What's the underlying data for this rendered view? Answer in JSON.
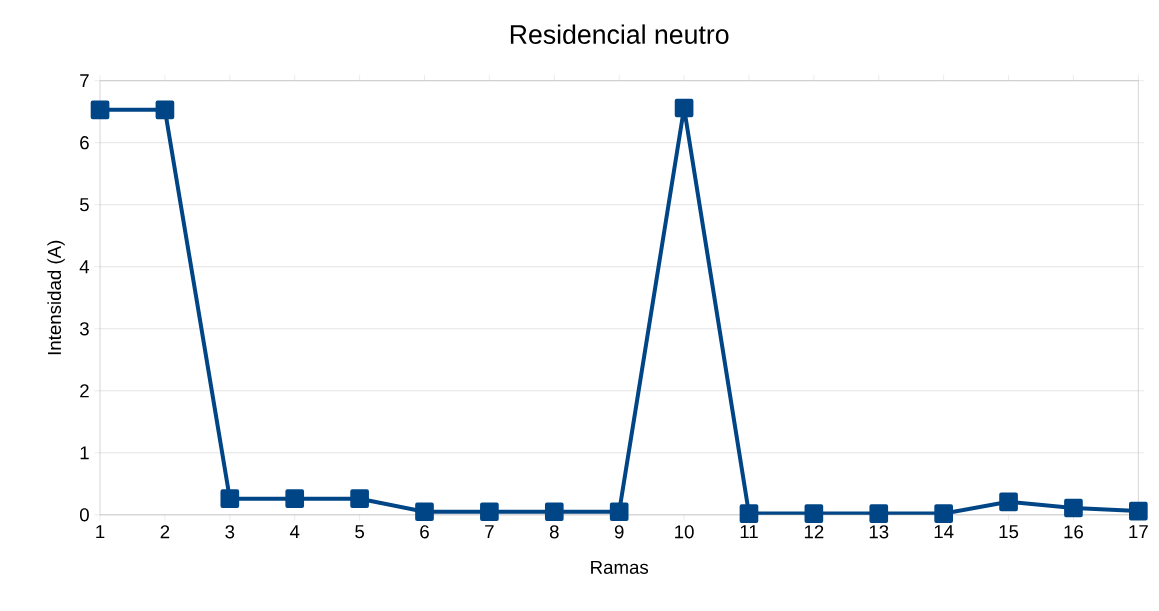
{
  "chart_data": {
    "type": "line",
    "title": "Residencial neutro",
    "xlabel": "Ramas",
    "ylabel": "Intensidad (A)",
    "x": [
      1,
      2,
      3,
      4,
      5,
      6,
      7,
      8,
      9,
      10,
      11,
      12,
      13,
      14,
      15,
      16,
      17
    ],
    "series": [
      {
        "color": "#004586",
        "values": [
          6.53,
          6.53,
          0.26,
          0.26,
          0.26,
          0.05,
          0.05,
          0.05,
          0.05,
          6.56,
          0.02,
          0.02,
          0.02,
          0.02,
          0.21,
          0.11,
          0.06
        ]
      }
    ],
    "xlim": [
      1,
      17
    ],
    "xticks": [
      1,
      2,
      3,
      4,
      5,
      6,
      7,
      8,
      9,
      10,
      11,
      12,
      13,
      14,
      15,
      16,
      17
    ],
    "ylim": [
      0,
      7
    ],
    "yticks": [
      0,
      1,
      2,
      3,
      4,
      5,
      6,
      7
    ],
    "grid": "y",
    "marker": "square",
    "line_style": "solid"
  }
}
